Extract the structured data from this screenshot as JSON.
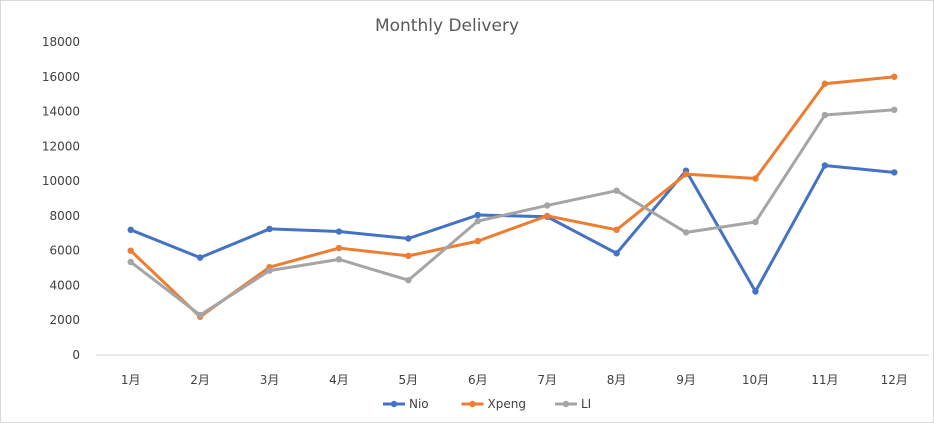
{
  "chart_data": {
    "type": "line",
    "title": "Monthly Delivery",
    "xlabel": "",
    "ylabel": "",
    "ylim": [
      0,
      18000
    ],
    "yticks": [
      0,
      2000,
      4000,
      6000,
      8000,
      10000,
      12000,
      14000,
      16000,
      18000
    ],
    "categories": [
      "1月",
      "2月",
      "3月",
      "4月",
      "5月",
      "6月",
      "7月",
      "8月",
      "9月",
      "10月",
      "11月",
      "12月"
    ],
    "grid": false,
    "legend_position": "bottom",
    "series": [
      {
        "name": "Nio",
        "color": "#4472c4",
        "values": [
          7200,
          5600,
          7250,
          7100,
          6700,
          8050,
          7950,
          5850,
          10600,
          3650,
          10900,
          10500
        ]
      },
      {
        "name": "Xpeng",
        "color": "#ed7d31",
        "values": [
          6000,
          2200,
          5050,
          6150,
          5700,
          6550,
          8000,
          7200,
          10400,
          10150,
          15600,
          16000
        ]
      },
      {
        "name": "LI",
        "color": "#a5a5a5",
        "values": [
          5350,
          2300,
          4850,
          5500,
          4300,
          7700,
          8600,
          9450,
          7050,
          7650,
          13800,
          14100
        ]
      }
    ]
  }
}
